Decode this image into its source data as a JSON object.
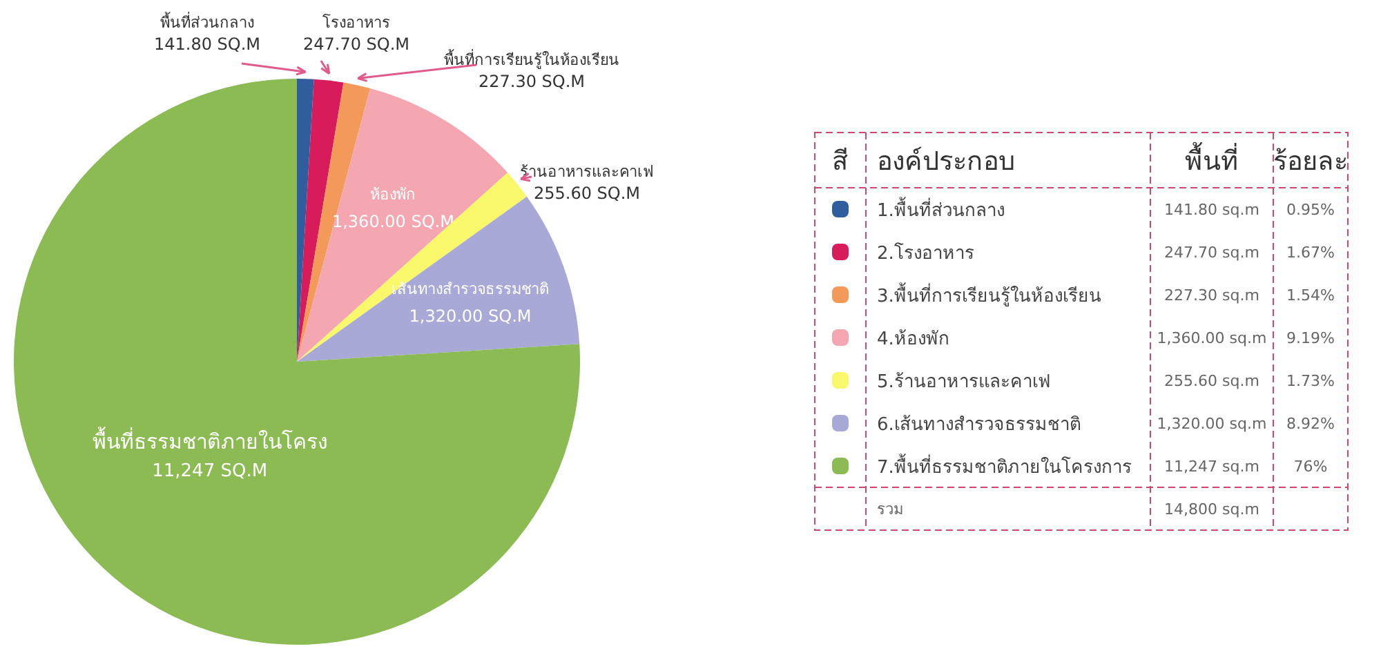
{
  "chart_data": {
    "type": "pie",
    "categories": [
      "พื้นที่ส่วนกลาง",
      "โรงอาหาร",
      "พื้นที่การเรียนรู้ในห้องเรียน",
      "ห้องพัก",
      "ร้านอาหารและคาเฟ",
      "เส้นทางสำรวจธรรมชาติ",
      "พื้นที่ธรรมชาติภายในโครง"
    ],
    "values": [
      141.8,
      247.7,
      227.3,
      1360.0,
      255.6,
      1320.0,
      11247
    ],
    "value_labels": [
      "141.80 SQ.M",
      "247.70 SQ.M",
      "227.30 SQ.M",
      "1,360.00 SQ.M",
      "255.60 SQ.M",
      "1,320.00 SQ.M",
      "11,247 SQ.M"
    ],
    "colors": [
      "#2f5d9e",
      "#d81b5a",
      "#f39a5a",
      "#f4a7b0",
      "#f8f86a",
      "#a9a9d8",
      "#8bbb52"
    ],
    "annotations": [
      "สี",
      "องค์ประกอบ",
      "พื้นที่",
      "ร้อยละ",
      "1.พื้นที่ส่วนกลาง",
      "141.80 sq.m",
      "0.95%",
      "2.โรงอาหาร",
      "247.70 sq.m",
      "1.67%",
      "3.พื้นที่การเรียนรู้ในห้องเรียน",
      "227.30 sq.m",
      "1.54%",
      "4.ห้องพัก",
      "1,360.00 sq.m",
      "9.19%",
      "5.ร้านอาหารและคาเฟ",
      "255.60 sq.m",
      "1.73%",
      "6.เส้นทางสำรวจธรรมชาติ",
      "1,320.00 sq.m",
      "8.92%",
      "7.พื้นที่ธรรมชาติภายในโครงการ",
      "11,247 sq.m",
      "76%",
      "รวม",
      "14,800 sq.m"
    ]
  }
}
